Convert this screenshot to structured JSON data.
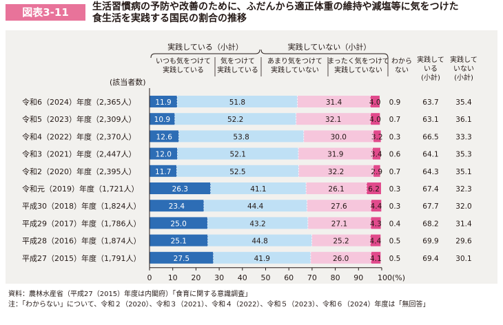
{
  "figure": {
    "badge": "図表3-11",
    "title_line1": "生活習慣病の予防や改善のために、ふだんから適正体重の維持や減塩等に気をつけた",
    "title_line2": "食生活を実践する国民の割合の推移"
  },
  "colors": {
    "badge_bg": "#e8739a",
    "always": "#2d6db5",
    "careful": "#bfe0f5",
    "not_much": "#f6c6dc",
    "not_at_all": "#e14a8c",
    "panel_bg": "#f2f1ee"
  },
  "notes": {
    "source": "資料：農林水産省（平成27（2015）年度は内閣府）「食育に関する意識調査」",
    "note": "注：「わからない」について、令和２（2020）、令和３（2021）、令和４（2022）、令和５（2023）、令和６（2024）年度は「無回答」"
  },
  "chart_data": {
    "type": "bar",
    "orientation": "horizontal",
    "stacked": true,
    "n_header": "(該当者数)",
    "group_headers": [
      "実践している（小計）",
      "実践していない（小計）"
    ],
    "series_headers": [
      [
        "いつも気をつけて",
        "実践している"
      ],
      [
        "気をつけて",
        "実践している"
      ],
      [
        "あまり気をつけて",
        "実践していない"
      ],
      [
        "まったく気をつけて",
        "実践していない"
      ],
      [
        "わから",
        "ない"
      ]
    ],
    "subtotal_headers": [
      [
        "実践して",
        "いる",
        "(小計)"
      ],
      [
        "実践して",
        "いない",
        "(小計)"
      ]
    ],
    "categories": [
      "令和6（2024）年度（2,365人）",
      "令和5（2023）年度（2,309人）",
      "令和4（2022）年度（2,370人）",
      "令和3（2021）年度（2,447人）",
      "令和2（2020）年度（2,395人）",
      "令和元（2019）年度（1,721人）",
      "平成30（2018）年度（1,824人）",
      "平成29（2017）年度（1,786人）",
      "平成28（2016）年度（1,874人）",
      "平成27（2015）年度（1,791人）"
    ],
    "series": [
      {
        "values": [
          11.9,
          10.9,
          12.6,
          12.0,
          11.7,
          26.3,
          23.4,
          25.0,
          25.1,
          27.5
        ]
      },
      {
        "values": [
          51.8,
          52.2,
          53.8,
          52.1,
          52.5,
          41.1,
          44.4,
          43.2,
          44.8,
          41.9
        ]
      },
      {
        "values": [
          31.4,
          32.1,
          30.0,
          31.9,
          32.2,
          26.1,
          27.6,
          27.1,
          25.2,
          26.0
        ]
      },
      {
        "values": [
          4.0,
          4.0,
          3.2,
          3.4,
          2.9,
          6.2,
          4.4,
          4.3,
          4.4,
          4.1
        ]
      },
      {
        "values": [
          0.9,
          0.7,
          0.3,
          0.6,
          0.7,
          0.3,
          0.3,
          0.4,
          0.5,
          0.5
        ]
      }
    ],
    "subtotals": [
      {
        "values": [
          63.7,
          63.1,
          66.5,
          64.1,
          64.3,
          67.4,
          67.7,
          68.2,
          69.9,
          69.4
        ]
      },
      {
        "values": [
          35.4,
          36.1,
          33.3,
          35.3,
          35.1,
          32.3,
          32.0,
          31.4,
          29.6,
          30.1
        ]
      }
    ],
    "xlim": [
      0,
      100
    ],
    "xticks": [
      "0",
      "10",
      "20",
      "30",
      "40",
      "50",
      "60",
      "70",
      "80",
      "90",
      "100(%)"
    ]
  }
}
